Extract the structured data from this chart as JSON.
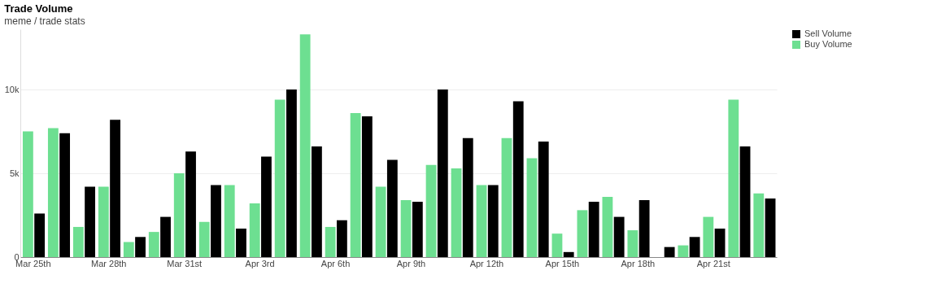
{
  "chart_data": {
    "type": "bar",
    "title": "Trade Volume",
    "subtitle": "meme / trade stats",
    "categories": [
      "Mar 25th",
      null,
      null,
      "Mar 28th",
      null,
      null,
      "Mar 31st",
      null,
      null,
      "Apr 3rd",
      null,
      null,
      "Apr 6th",
      null,
      null,
      "Apr 9th",
      null,
      null,
      "Apr 12th",
      null,
      null,
      "Apr 15th",
      null,
      null,
      "Apr 18th",
      null,
      null,
      "Apr 21st",
      null,
      null
    ],
    "series": [
      {
        "name": "Buy Volume",
        "color": "#6ddf91",
        "values": [
          7500,
          7700,
          1800,
          4200,
          900,
          1500,
          5000,
          2100,
          4300,
          3200,
          9400,
          13300,
          1800,
          8600,
          4200,
          3400,
          5500,
          5300,
          4300,
          7100,
          5900,
          1400,
          2800,
          3600,
          1600,
          0,
          700,
          2400,
          9400,
          3800
        ]
      },
      {
        "name": "Sell Volume",
        "color": "#000000",
        "values": [
          2600,
          7400,
          4200,
          8200,
          1200,
          2400,
          6300,
          4300,
          1700,
          6000,
          10000,
          6600,
          2200,
          8400,
          5800,
          3300,
          10000,
          7100,
          4300,
          9300,
          6900,
          300,
          3300,
          2400,
          3400,
          600,
          1200,
          1700,
          6600,
          3500
        ]
      }
    ],
    "ylim": [
      0,
      13600
    ],
    "yticks": [
      0,
      {
        "value": 5000,
        "label": "5k"
      },
      {
        "value": 10000,
        "label": "10k"
      }
    ],
    "grid": "y",
    "legend": "right"
  }
}
